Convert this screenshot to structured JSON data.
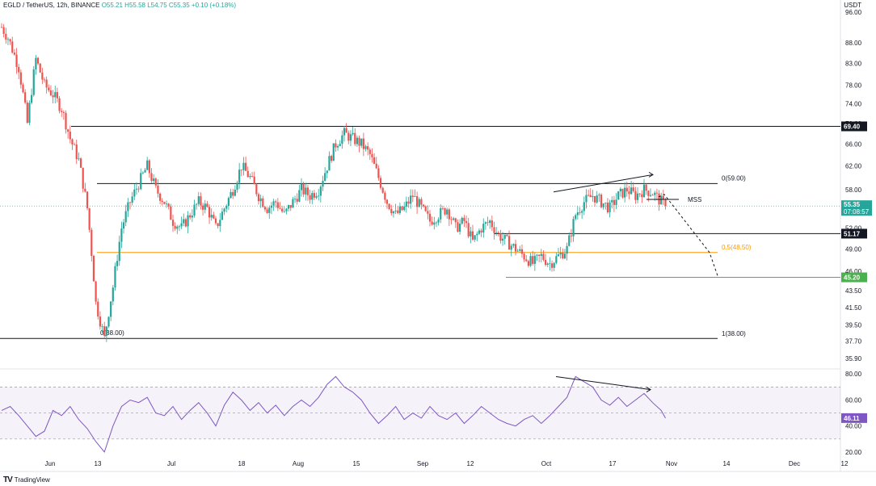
{
  "header": {
    "symbol": "EGLD / TetherUS, 12h, BINANCE",
    "ohlc": "O55.21 H55.58 L54.75 C55.35 +0.10 (+0.18%)",
    "quote_unit": "USDT"
  },
  "footer": {
    "brand": "TradingView",
    "logo": "TV"
  },
  "colors": {
    "up": "#26a69a",
    "down": "#ef5350",
    "rsi": "#7e57c2",
    "fib": "#ff9800",
    "support": "#4caf50"
  },
  "chart_data": [
    {
      "type": "candlestick",
      "name": "price",
      "timeframe": "12h",
      "x_tick_labels": [
        "Jun",
        "13",
        "Jul",
        "18",
        "Aug",
        "15",
        "Sep",
        "12",
        "Oct",
        "17",
        "Nov",
        "14",
        "Dec",
        "12"
      ],
      "y_tick_labels": [
        "96.00",
        "88.00",
        "83.00",
        "78.00",
        "74.00",
        "70.00",
        "66.00",
        "62.00",
        "58.00",
        "55.00",
        "52.00",
        "49.00",
        "46.00",
        "43.50",
        "41.50",
        "39.50",
        "37.70",
        "35.90"
      ],
      "ylim": [
        35.9,
        98
      ],
      "scale": "log",
      "last_price": 55.35,
      "countdown": "07:08:57",
      "price_path": [
        [
          "Jun",
          92
        ],
        [
          0.8,
          89
        ],
        [
          2,
          82
        ],
        [
          3,
          70
        ],
        [
          4,
          84
        ],
        [
          5,
          78
        ],
        [
          6,
          76
        ],
        [
          7,
          73
        ],
        [
          8,
          67
        ],
        [
          9,
          63
        ],
        [
          10,
          55
        ],
        [
          11,
          42
        ],
        [
          12,
          38
        ],
        [
          13,
          44
        ],
        [
          14,
          52
        ],
        [
          15,
          56
        ],
        [
          16,
          59
        ],
        [
          17,
          62
        ],
        [
          18,
          58
        ],
        [
          19,
          56
        ],
        [
          20,
          53
        ],
        [
          21,
          52
        ],
        [
          22,
          54
        ],
        [
          23,
          56
        ],
        [
          24,
          55
        ],
        [
          25,
          52
        ],
        [
          26,
          55
        ],
        [
          27,
          58
        ],
        [
          28,
          62
        ],
        [
          29,
          60
        ],
        [
          30,
          57
        ],
        [
          31,
          55
        ],
        [
          32,
          56
        ],
        [
          33,
          54
        ],
        [
          34,
          56
        ],
        [
          35,
          58
        ],
        [
          36,
          57
        ],
        [
          37,
          58
        ],
        [
          38,
          62
        ],
        [
          39,
          66
        ],
        [
          40,
          68
        ],
        [
          41,
          67
        ],
        [
          42,
          66
        ],
        [
          43,
          64
        ],
        [
          44,
          60
        ],
        [
          45,
          56
        ],
        [
          46,
          54
        ],
        [
          47,
          55
        ],
        [
          48,
          57
        ],
        [
          49,
          55
        ],
        [
          50,
          53
        ],
        [
          51,
          54
        ],
        [
          52,
          55
        ],
        [
          53,
          52
        ],
        [
          54,
          53
        ],
        [
          55,
          50
        ],
        [
          56,
          52
        ],
        [
          57,
          53
        ],
        [
          58,
          51
        ],
        [
          59,
          50
        ],
        [
          60,
          49
        ],
        [
          61,
          48
        ],
        [
          62,
          47
        ],
        [
          63,
          48
        ],
        [
          64,
          47
        ],
        [
          65,
          48
        ],
        [
          66,
          49
        ],
        [
          67,
          54
        ],
        [
          68,
          56
        ],
        [
          69,
          57
        ],
        [
          70,
          56
        ],
        [
          71,
          55
        ],
        [
          72,
          57
        ],
        [
          73,
          58
        ],
        [
          74,
          57
        ],
        [
          75,
          58
        ],
        [
          76,
          57.5
        ],
        [
          77,
          56
        ],
        [
          77.5,
          55.35
        ]
      ],
      "levels": [
        {
          "label": "69.40",
          "value": 69.4,
          "type": "horizontal"
        },
        {
          "label": "0(59.00)",
          "value": 59.0,
          "type": "range-high"
        },
        {
          "label": "51.17",
          "value": 51.17,
          "type": "horizontal"
        },
        {
          "label": "0.5(48.50)",
          "value": 48.5,
          "type": "fib-0.5"
        },
        {
          "label": "45.20",
          "value": 45.2,
          "type": "support"
        },
        {
          "label": "0(38.00)",
          "value": 38.0,
          "type": "range-low"
        },
        {
          "label": "1(38.00)",
          "value": 38.0,
          "type": "range-low"
        }
      ],
      "annotations": [
        "MSS"
      ]
    },
    {
      "type": "line",
      "name": "RSI",
      "y_tick_labels": [
        "80.00",
        "60.00",
        "40.00",
        "20.00"
      ],
      "ylim": [
        15,
        82
      ],
      "band": [
        30,
        70
      ],
      "midline": 50,
      "last_value": 46.11,
      "series": [
        [
          0,
          52
        ],
        [
          1,
          55
        ],
        [
          2,
          48
        ],
        [
          3,
          40
        ],
        [
          4,
          32
        ],
        [
          5,
          36
        ],
        [
          6,
          52
        ],
        [
          7,
          48
        ],
        [
          8,
          55
        ],
        [
          9,
          45
        ],
        [
          10,
          38
        ],
        [
          11,
          28
        ],
        [
          12,
          20
        ],
        [
          13,
          40
        ],
        [
          14,
          55
        ],
        [
          15,
          60
        ],
        [
          16,
          58
        ],
        [
          17,
          62
        ],
        [
          18,
          50
        ],
        [
          19,
          48
        ],
        [
          20,
          55
        ],
        [
          21,
          45
        ],
        [
          22,
          52
        ],
        [
          23,
          58
        ],
        [
          24,
          50
        ],
        [
          25,
          40
        ],
        [
          26,
          56
        ],
        [
          27,
          66
        ],
        [
          28,
          60
        ],
        [
          29,
          52
        ],
        [
          30,
          58
        ],
        [
          31,
          50
        ],
        [
          32,
          56
        ],
        [
          33,
          48
        ],
        [
          34,
          55
        ],
        [
          35,
          60
        ],
        [
          36,
          55
        ],
        [
          37,
          62
        ],
        [
          38,
          72
        ],
        [
          39,
          78
        ],
        [
          40,
          70
        ],
        [
          41,
          66
        ],
        [
          42,
          60
        ],
        [
          43,
          50
        ],
        [
          44,
          42
        ],
        [
          45,
          48
        ],
        [
          46,
          55
        ],
        [
          47,
          45
        ],
        [
          48,
          50
        ],
        [
          49,
          46
        ],
        [
          50,
          55
        ],
        [
          51,
          48
        ],
        [
          52,
          45
        ],
        [
          53,
          50
        ],
        [
          54,
          42
        ],
        [
          55,
          48
        ],
        [
          56,
          55
        ],
        [
          57,
          50
        ],
        [
          58,
          45
        ],
        [
          59,
          42
        ],
        [
          60,
          40
        ],
        [
          61,
          45
        ],
        [
          62,
          48
        ],
        [
          63,
          42
        ],
        [
          64,
          48
        ],
        [
          65,
          55
        ],
        [
          66,
          62
        ],
        [
          67,
          78
        ],
        [
          68,
          74
        ],
        [
          69,
          70
        ],
        [
          70,
          60
        ],
        [
          71,
          56
        ],
        [
          72,
          62
        ],
        [
          73,
          55
        ],
        [
          74,
          60
        ],
        [
          75,
          65
        ],
        [
          76,
          58
        ],
        [
          77,
          52
        ],
        [
          77.5,
          46.11
        ]
      ]
    }
  ]
}
